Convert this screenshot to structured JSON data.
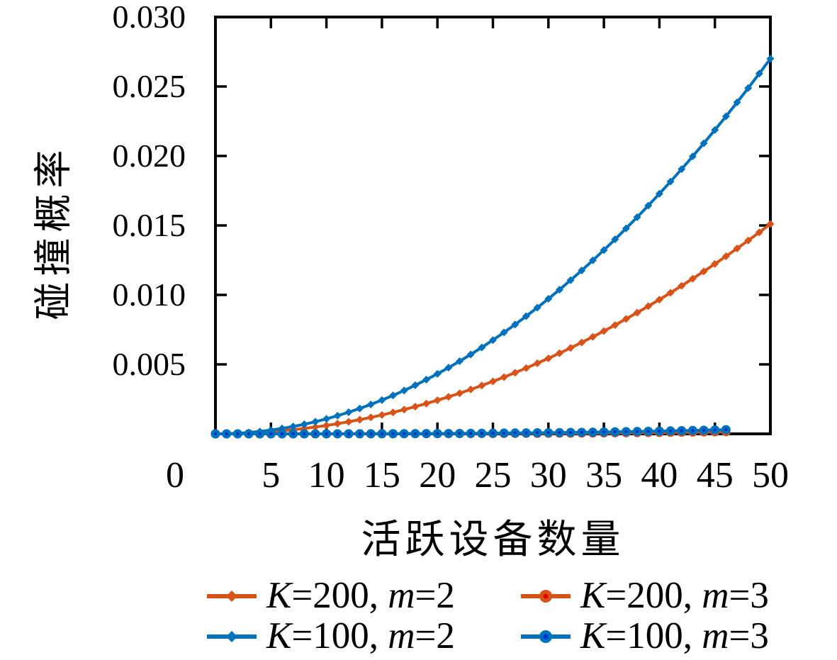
{
  "chart_data": {
    "type": "line",
    "title": "",
    "xlabel": "活跃设备数量",
    "ylabel": "碰撞概率",
    "xlim": [
      0,
      50
    ],
    "ylim": [
      0,
      0.03
    ],
    "grid": false,
    "frame": "full-box-inward-ticks",
    "legend_position": "below-plot, 2 columns x 2 rows",
    "x_ticks": {
      "values": [
        0,
        5,
        10,
        15,
        20,
        25,
        30,
        35,
        40,
        45,
        50
      ],
      "labels": [
        "0",
        "5",
        "10",
        "15",
        "20",
        "25",
        "30",
        "35",
        "40",
        "45",
        "50"
      ]
    },
    "y_ticks": {
      "values": [
        0.005,
        0.01,
        0.015,
        0.02,
        0.025,
        0.03
      ],
      "labels": [
        "0.005",
        "0.010",
        "0.015",
        "0.020",
        "0.025",
        "0.030"
      ]
    },
    "series": [
      {
        "name": "K=200, m=2",
        "color": "#d95319",
        "marker": "diamond",
        "marker_center": "#d95319",
        "x": [
          0,
          1,
          2,
          3,
          4,
          5,
          6,
          7,
          8,
          9,
          10,
          11,
          12,
          13,
          14,
          15,
          16,
          17,
          18,
          19,
          20,
          21,
          22,
          23,
          24,
          25,
          26,
          27,
          28,
          29,
          30,
          31,
          32,
          33,
          34,
          35,
          36,
          37,
          38,
          39,
          40,
          41,
          42,
          43,
          44,
          45,
          46,
          47,
          48,
          49,
          50
        ],
        "y": [
          0,
          6e-06,
          2.4e-05,
          5.4e-05,
          9.7e-05,
          0.000151,
          0.000217,
          0.000296,
          0.000387,
          0.000489,
          0.000604,
          0.000731,
          0.00087,
          0.001021,
          0.001184,
          0.001359,
          0.001546,
          0.001746,
          0.001957,
          0.00218,
          0.002416,
          0.002664,
          0.002923,
          0.003195,
          0.003479,
          0.003775,
          0.004083,
          0.004403,
          0.004735,
          0.00508,
          0.005436,
          0.005804,
          0.006185,
          0.006578,
          0.006982,
          0.007399,
          0.007828,
          0.008269,
          0.008722,
          0.009187,
          0.009664,
          0.010153,
          0.010655,
          0.011168,
          0.011693,
          0.012231,
          0.01278,
          0.013342,
          0.013916,
          0.014502,
          0.0151
        ]
      },
      {
        "name": "K=100, m=2",
        "color": "#0072bd",
        "marker": "diamond",
        "marker_center": "#0072bd",
        "x": [
          0,
          1,
          2,
          3,
          4,
          5,
          6,
          7,
          8,
          9,
          10,
          11,
          12,
          13,
          14,
          15,
          16,
          17,
          18,
          19,
          20,
          21,
          22,
          23,
          24,
          25,
          26,
          27,
          28,
          29,
          30,
          31,
          32,
          33,
          34,
          35,
          36,
          37,
          38,
          39,
          40,
          41,
          42,
          43,
          44,
          45,
          46,
          47,
          48,
          49,
          50
        ],
        "y": [
          0,
          1.1e-05,
          4.3e-05,
          9.7e-05,
          0.000173,
          0.00027,
          0.000389,
          0.000529,
          0.000691,
          0.000875,
          0.00108,
          0.001307,
          0.001555,
          0.001825,
          0.002117,
          0.00243,
          0.002765,
          0.003121,
          0.0035,
          0.0039,
          0.00432,
          0.004763,
          0.005227,
          0.005713,
          0.006221,
          0.00675,
          0.007301,
          0.007873,
          0.008467,
          0.009083,
          0.00972,
          0.010379,
          0.011059,
          0.011761,
          0.012485,
          0.01323,
          0.013997,
          0.014786,
          0.015596,
          0.016428,
          0.01728,
          0.018155,
          0.019051,
          0.019969,
          0.020909,
          0.02187,
          0.022853,
          0.023857,
          0.024883,
          0.025931,
          0.027
        ]
      },
      {
        "name": "K=200, m=3",
        "color": "#d95319",
        "marker": "dot",
        "marker_center": "#e00000",
        "x": [
          0,
          1,
          2,
          3,
          4,
          5,
          6,
          7,
          8,
          9,
          10,
          11,
          12,
          13,
          14,
          15,
          16,
          17,
          18,
          19,
          20,
          21,
          22,
          23,
          24,
          25,
          26,
          27,
          28,
          29,
          30,
          31,
          32,
          33,
          34,
          35,
          36,
          37,
          38,
          39,
          40,
          41,
          42,
          43,
          44,
          45,
          46
        ],
        "y": [
          0,
          0,
          0,
          0,
          1e-07,
          2e-07,
          3e-07,
          5e-07,
          8e-07,
          1.2e-06,
          1.6e-06,
          2.1e-06,
          2.8e-06,
          3.5e-06,
          4.4e-06,
          5.4e-06,
          6.6e-06,
          7.9e-06,
          9.3e-06,
          1.1e-05,
          1.28e-05,
          1.48e-05,
          1.7e-05,
          1.95e-05,
          2.21e-05,
          2.5e-05,
          2.81e-05,
          3.15e-05,
          3.51e-05,
          3.9e-05,
          4.32e-05,
          4.77e-05,
          5.24e-05,
          5.75e-05,
          6.29e-05,
          6.86e-05,
          7.46e-05,
          8.1e-05,
          8.78e-05,
          9.49e-05,
          0.0001024,
          0.0001103,
          0.0001185,
          0.0001272,
          0.0001363,
          0.0001458,
          0.0001557
        ]
      },
      {
        "name": "K=100, m=3",
        "color": "#0072bd",
        "marker": "dot",
        "marker_center": "#0033cc",
        "x": [
          0,
          1,
          2,
          3,
          4,
          5,
          6,
          7,
          8,
          9,
          10,
          11,
          12,
          13,
          14,
          15,
          16,
          17,
          18,
          19,
          20,
          21,
          22,
          23,
          24,
          25,
          26,
          27,
          28,
          29,
          30,
          31,
          32,
          33,
          34,
          35,
          36,
          37,
          38,
          39,
          40,
          41,
          42,
          43,
          44,
          45,
          46
        ],
        "y": [
          0,
          0,
          0,
          1e-07,
          2e-07,
          4e-07,
          7e-07,
          1.1e-06,
          1.6e-06,
          2.3e-06,
          3.1e-06,
          4.1e-06,
          5.4e-06,
          6.8e-06,
          8.5e-06,
          1.05e-05,
          1.27e-05,
          1.52e-05,
          1.81e-05,
          2.13e-05,
          2.48e-05,
          2.87e-05,
          3.3e-05,
          3.77e-05,
          4.29e-05,
          4.84e-05,
          5.45e-05,
          6.1e-05,
          6.8e-05,
          7.56e-05,
          8.37e-05,
          9.23e-05,
          0.0001016,
          0.0001114,
          0.0001218,
          0.0001329,
          0.0001446,
          0.000157,
          0.00017,
          0.0001839,
          0.0001984,
          0.0002137,
          0.0002296,
          0.0002465,
          0.000264,
          0.0002825,
          0.0003017
        ]
      }
    ],
    "legend": {
      "entries": [
        {
          "label": "K=200, m=2",
          "color": "#d95319",
          "marker": "diamond",
          "center": "#d95319"
        },
        {
          "label": "K=200, m=3",
          "color": "#d95319",
          "marker": "dot",
          "center": "#e00000"
        },
        {
          "label": "K=100, m=2",
          "color": "#0072bd",
          "marker": "diamond",
          "center": "#0072bd"
        },
        {
          "label": "K=100, m=3",
          "color": "#0072bd",
          "marker": "dot",
          "center": "#0033cc"
        }
      ]
    },
    "colors": {
      "axis": "#000000",
      "background": "#ffffff",
      "blue_series": "#0072bd",
      "orange_series": "#d95319"
    }
  }
}
